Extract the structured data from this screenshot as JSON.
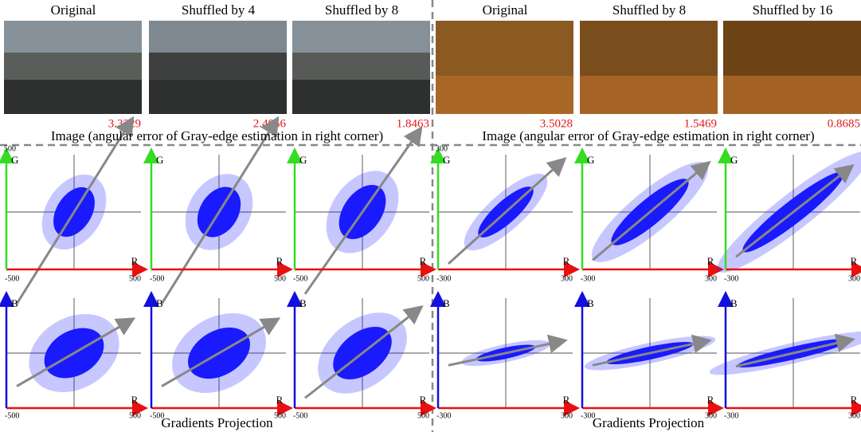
{
  "halves": [
    {
      "columns": [
        {
          "title": "Original",
          "error": "3.3229"
        },
        {
          "title": "Shuffled by 4",
          "error": "2.4856"
        },
        {
          "title": "Shuffled by 8",
          "error": "1.8463"
        }
      ],
      "image_caption": "Image (angular error of Gray-edge estimation in right corner)",
      "plots": [
        {
          "y_axis": "G",
          "y_max": "500"
        },
        {
          "y_axis": "B"
        }
      ],
      "x_axis": "R",
      "x_min": "-500",
      "x_max": "500",
      "plot_caption": "Gradients Projection"
    },
    {
      "columns": [
        {
          "title": "Original",
          "error": "3.5028"
        },
        {
          "title": "Shuffled by 8",
          "error": "1.5469"
        },
        {
          "title": "Shuffled by 16",
          "error": "0.8685"
        }
      ],
      "image_caption": "Image (angular error of Gray-edge estimation in right corner)",
      "plots": [
        {
          "y_axis": "G",
          "y_max": "300"
        },
        {
          "y_axis": "B"
        }
      ],
      "x_axis": "R",
      "x_min": "-300",
      "x_max": "300",
      "plot_caption": "Gradients Projection"
    }
  ]
}
